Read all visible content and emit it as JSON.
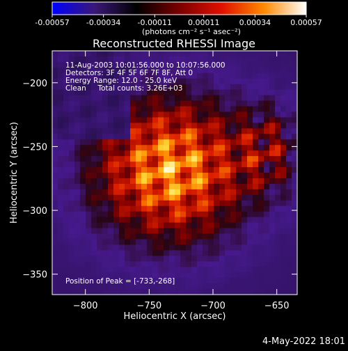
{
  "colorbar": {
    "tick_labels": [
      "-0.00057",
      "-0.00034",
      "-0.00011",
      "0.00011",
      "0.00034",
      "0.00057"
    ],
    "unit_label": "(photons cm⁻² s⁻¹ asec⁻²)",
    "range": [
      -0.00057,
      0.00057
    ],
    "colors": [
      "#0000ff",
      "#3a1878",
      "#000000",
      "#7a0000",
      "#e01000",
      "#ff8a00",
      "#ffffff"
    ]
  },
  "chart_data": {
    "type": "heatmap",
    "title": "Reconstructed RHESSI Image",
    "xlabel": "Heliocentric X (arcsec)",
    "ylabel": "Heliocentric Y (arcsec)",
    "xlim": [
      -826,
      -634
    ],
    "ylim": [
      -366,
      -175
    ],
    "x_ticks": [
      -800,
      -750,
      -700,
      -650
    ],
    "y_ticks": [
      -200,
      -250,
      -300,
      -350
    ],
    "x_tick_labels": [
      "−800",
      "−750",
      "−700",
      "−650"
    ],
    "y_tick_labels": [
      "−200",
      "−250",
      "−300",
      "−350"
    ],
    "annotations": [
      "11-Aug-2003 10:01:56.000 to 10:07:56.000",
      "Detectors: 3F 4F 5F 6F 7F 8F, Att 0",
      "Energy Range: 12.0 - 25.0 keV",
      "Clean     Total counts: 3.26E+03"
    ],
    "peak_label": "Position of Peak = [-733,-268]",
    "peak": [
      -733,
      -268
    ]
  },
  "footer": {
    "date": "4-May-2022 18:01"
  }
}
